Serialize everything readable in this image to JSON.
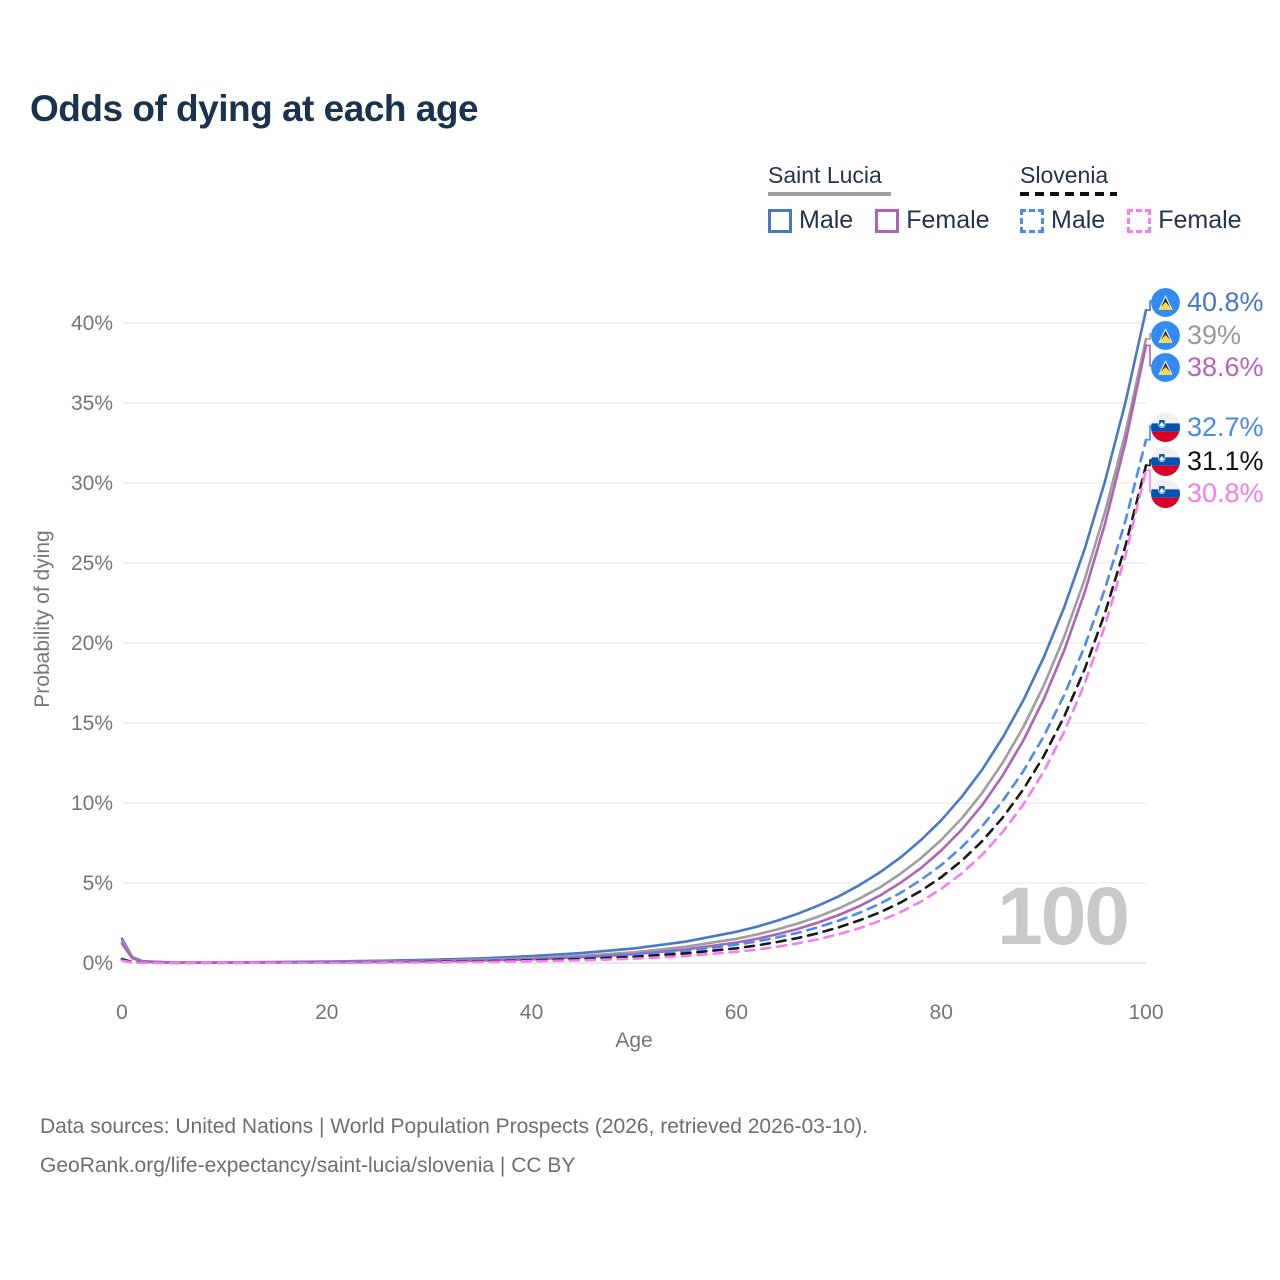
{
  "page": {
    "title": "Odds of dying at each age"
  },
  "legend": {
    "saint_lucia": {
      "name": "Saint Lucia",
      "line_style": "solid",
      "line_color": "#9E9E9E",
      "male_label": "Male",
      "female_label": "Female",
      "male_color": "#4878C8",
      "female_color": "#AF63B7"
    },
    "slovenia": {
      "name": "Slovenia",
      "line_style": "dashed",
      "line_color": "#1A1A1A",
      "male_label": "Male",
      "female_label": "Female",
      "male_color": "#4D8AF0",
      "female_color": "#F97CF0"
    }
  },
  "chart_data": {
    "type": "line",
    "title": "Odds of dying at each age",
    "xlabel": "Age",
    "ylabel": "Probability of dying",
    "xlim": [
      0,
      100
    ],
    "ylim_percent": [
      0,
      40
    ],
    "grid": "horizontal",
    "age_indicator": "100",
    "x_ticks": [
      {
        "value": 0,
        "label": "0"
      },
      {
        "value": 20,
        "label": "20"
      },
      {
        "value": 40,
        "label": "40"
      },
      {
        "value": 60,
        "label": "60"
      },
      {
        "value": 80,
        "label": "80"
      },
      {
        "value": 100,
        "label": "100"
      }
    ],
    "y_ticks": [
      {
        "value": 0,
        "label": "0%"
      },
      {
        "value": 5,
        "label": "5%"
      },
      {
        "value": 10,
        "label": "10%"
      },
      {
        "value": 15,
        "label": "15%"
      },
      {
        "value": 20,
        "label": "20%"
      },
      {
        "value": 25,
        "label": "25%"
      },
      {
        "value": 30,
        "label": "30%"
      },
      {
        "value": 35,
        "label": "35%"
      },
      {
        "value": 40,
        "label": "40%"
      }
    ],
    "ages": [
      0,
      1,
      2,
      5,
      10,
      15,
      20,
      25,
      30,
      35,
      40,
      45,
      50,
      55,
      60,
      62,
      64,
      66,
      68,
      70,
      72,
      74,
      76,
      78,
      80,
      82,
      84,
      86,
      88,
      90,
      92,
      94,
      96,
      98,
      100
    ],
    "series": [
      {
        "name": "Saint Lucia Male",
        "country": "Saint Lucia",
        "sex": "Male",
        "line_style": "solid",
        "color": "#4878C8",
        "label_color": "#4677C9",
        "end_value_percent": 40.8,
        "end_label": "40.8%",
        "values": [
          1.52,
          0.38,
          0.11,
          0.03,
          0.04,
          0.06,
          0.09,
          0.14,
          0.2,
          0.29,
          0.43,
          0.63,
          0.91,
          1.33,
          1.95,
          2.27,
          2.65,
          3.08,
          3.59,
          4.17,
          4.86,
          5.66,
          6.58,
          7.67,
          8.92,
          10.39,
          12.09,
          14.08,
          16.39,
          19.08,
          22.21,
          25.86,
          30.11,
          35.05,
          40.8
        ]
      },
      {
        "name": "Saint Lucia Both sexes",
        "country": "Saint Lucia",
        "sex": "Both",
        "line_style": "solid",
        "color": "#9E9E9E",
        "label_color": "#9A9A9A",
        "end_value_percent": 39,
        "end_label": "39%",
        "values": [
          1.36,
          0.35,
          0.09,
          0.02,
          0.03,
          0.04,
          0.06,
          0.09,
          0.13,
          0.2,
          0.3,
          0.45,
          0.67,
          1.01,
          1.51,
          1.78,
          2.1,
          2.47,
          2.9,
          3.41,
          4.02,
          4.72,
          5.56,
          6.54,
          7.69,
          9.04,
          10.63,
          12.51,
          14.72,
          17.32,
          20.37,
          23.96,
          28.19,
          33.15,
          39.0
        ]
      },
      {
        "name": "Saint Lucia Female",
        "country": "Saint Lucia",
        "sex": "Female",
        "line_style": "solid",
        "color": "#AF63B7",
        "label_color": "#B763BE",
        "end_value_percent": 38.6,
        "end_label": "38.6%",
        "values": [
          1.21,
          0.3,
          0.08,
          0.01,
          0.02,
          0.03,
          0.04,
          0.07,
          0.1,
          0.15,
          0.23,
          0.36,
          0.55,
          0.84,
          1.28,
          1.51,
          1.8,
          2.13,
          2.53,
          3.0,
          3.55,
          4.21,
          5.0,
          5.92,
          7.03,
          8.33,
          9.87,
          11.71,
          13.88,
          16.47,
          19.52,
          23.15,
          27.45,
          32.55,
          38.6
        ]
      },
      {
        "name": "Slovenia Male",
        "country": "Slovenia",
        "sex": "Male",
        "line_style": "dashed",
        "color": "#4D8AF0",
        "label_color": "#4A86EE",
        "end_value_percent": 32.7,
        "end_label": "32.7%",
        "values": [
          0.26,
          0.07,
          0.02,
          0.01,
          0.02,
          0.03,
          0.04,
          0.06,
          0.09,
          0.14,
          0.21,
          0.33,
          0.5,
          0.75,
          1.15,
          1.35,
          1.6,
          1.89,
          2.24,
          2.65,
          3.13,
          3.7,
          4.37,
          5.18,
          6.12,
          7.24,
          8.55,
          10.12,
          11.96,
          14.15,
          16.73,
          19.78,
          23.39,
          27.65,
          32.7
        ]
      },
      {
        "name": "Slovenia Both sexes",
        "country": "Slovenia",
        "sex": "Both",
        "line_style": "dashed",
        "color": "#1A1A1A",
        "label_color": "#111111",
        "end_value_percent": 31.1,
        "end_label": "31.1%",
        "values": [
          0.21,
          0.05,
          0.02,
          0.01,
          0.01,
          0.02,
          0.03,
          0.04,
          0.07,
          0.1,
          0.16,
          0.25,
          0.38,
          0.6,
          0.92,
          1.1,
          1.31,
          1.56,
          1.87,
          2.23,
          2.66,
          3.16,
          3.77,
          4.5,
          5.36,
          6.39,
          7.62,
          9.08,
          10.83,
          12.91,
          15.39,
          18.35,
          21.88,
          26.09,
          31.1
        ]
      },
      {
        "name": "Slovenia Female",
        "country": "Slovenia",
        "sex": "Female",
        "line_style": "dashed",
        "color": "#F97CF0",
        "label_color": "#FB7BEF",
        "end_value_percent": 30.8,
        "end_label": "30.8%",
        "values": [
          0.15,
          0.04,
          0.01,
          0.005,
          0.01,
          0.01,
          0.02,
          0.03,
          0.04,
          0.07,
          0.11,
          0.17,
          0.27,
          0.43,
          0.7,
          0.84,
          1.02,
          1.23,
          1.49,
          1.8,
          2.17,
          2.63,
          3.17,
          3.83,
          4.63,
          5.6,
          6.77,
          8.18,
          9.89,
          11.95,
          14.44,
          17.45,
          21.09,
          25.48,
          30.8
        ]
      }
    ]
  },
  "footer": {
    "line1": "Data sources: United Nations | World Population Prospects (2026, retrieved 2026-03-10).",
    "line2": "GeoRank.org/life-expectancy/saint-lucia/slovenia | CC BY"
  }
}
